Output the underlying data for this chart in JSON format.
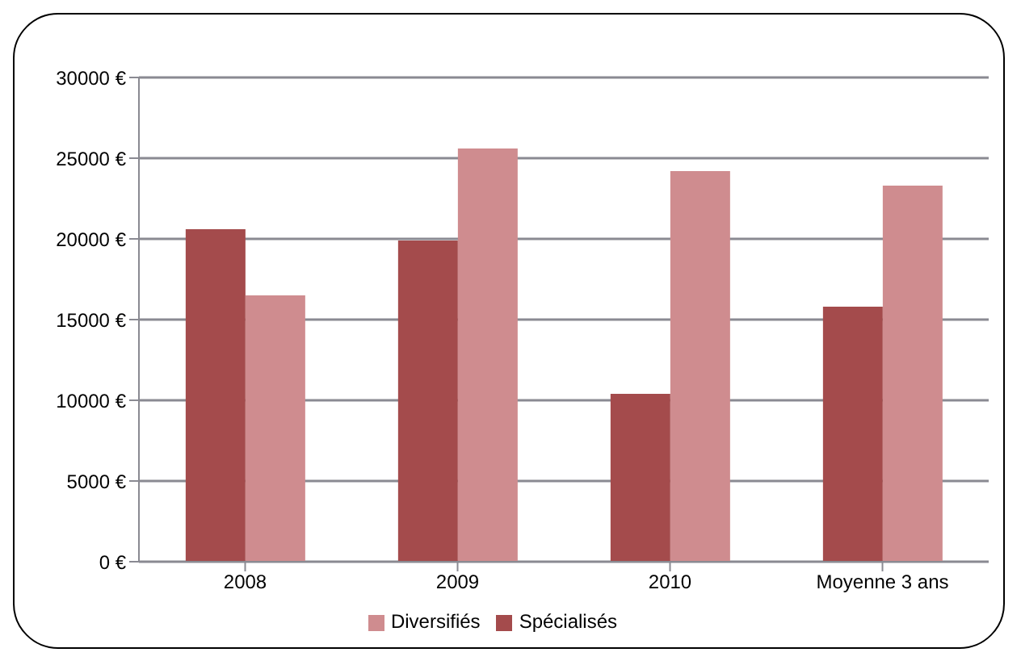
{
  "chart_data": {
    "type": "bar",
    "categories": [
      "2008",
      "2009",
      "2010",
      "Moyenne 3 ans"
    ],
    "series": [
      {
        "name": "Spécialisés",
        "color": "#a44b4c",
        "values": [
          20600,
          19900,
          10400,
          15800
        ]
      },
      {
        "name": "Diversifiés",
        "color": "#cf8c8f",
        "values": [
          16500,
          25600,
          24200,
          23300
        ]
      }
    ],
    "ylim": [
      0,
      30000
    ],
    "yticks": [
      {
        "value": 0,
        "label": "0 €"
      },
      {
        "value": 5000,
        "label": "5000 €"
      },
      {
        "value": 10000,
        "label": "10000 €"
      },
      {
        "value": 15000,
        "label": "15000 €"
      },
      {
        "value": 20000,
        "label": "20000 €"
      },
      {
        "value": 25000,
        "label": "25000 €"
      },
      {
        "value": 30000,
        "label": "30000 €"
      }
    ],
    "grid": "y",
    "legend": "bottom"
  }
}
